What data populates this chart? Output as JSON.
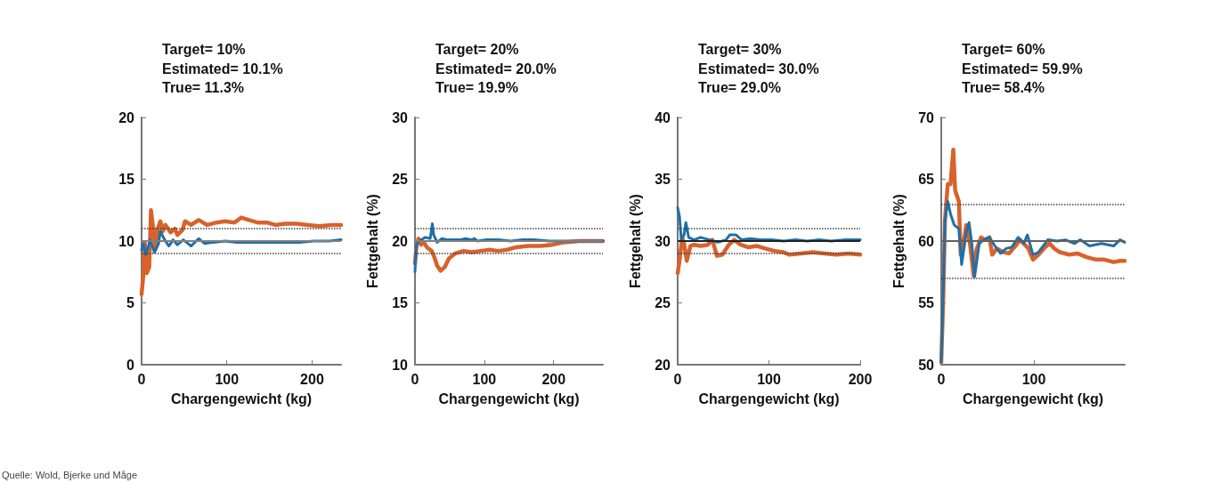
{
  "chart_data": [
    {
      "type": "line",
      "title": "Target= 10%",
      "subtitle": "Estimated= 10.1%\nTrue= 11.3%",
      "xlabel": "Chargengewicht (kg)",
      "xlim": [
        0,
        234
      ],
      "xticks": [
        0,
        100,
        200
      ],
      "ylim": [
        0,
        20
      ],
      "yticks": [
        0,
        5,
        10,
        15,
        20
      ],
      "series": [
        {
          "color": "#d9622b",
          "x": [
            0,
            2,
            4,
            6,
            9,
            11,
            14,
            16,
            19,
            22,
            25,
            28,
            34,
            39,
            42,
            48,
            51,
            58,
            67,
            77,
            88,
            98,
            109,
            117,
            126,
            136,
            147,
            157,
            168,
            182,
            195,
            209,
            223,
            234
          ],
          "values": [
            5.7,
            7.2,
            9.8,
            7.4,
            7.9,
            12.5,
            10.8,
            9.3,
            11,
            11.6,
            10.8,
            11.3,
            10.7,
            11,
            10.5,
            10.9,
            11.6,
            11.3,
            11.7,
            11.3,
            11.5,
            11.6,
            11.5,
            11.9,
            11.7,
            11.5,
            11.5,
            11.3,
            11.4,
            11.4,
            11.3,
            11.2,
            11.3,
            11.3
          ]
        },
        {
          "color": "#1f6fa8",
          "x": [
            0,
            2,
            5,
            8,
            10,
            15,
            20,
            22,
            27,
            32,
            37,
            42,
            49,
            58,
            67,
            74,
            84,
            98,
            112,
            126,
            140,
            154,
            168,
            185,
            202,
            220,
            234
          ],
          "values": [
            9.3,
            9.8,
            8.9,
            9.6,
            10.1,
            9.1,
            9.8,
            10.8,
            10.1,
            9.6,
            10.1,
            9.7,
            10.1,
            9.6,
            10.2,
            9.8,
            9.9,
            10.0,
            9.9,
            9.9,
            9.9,
            9.9,
            9.9,
            9.9,
            10.0,
            10.0,
            10.1
          ]
        }
      ],
      "ref_lines": [
        {
          "axis": "y",
          "value": 10,
          "color": "#808080",
          "line_style": "solid"
        },
        {
          "axis": "y",
          "value": 11,
          "color": "#404040",
          "line_style": "dotted"
        },
        {
          "axis": "y",
          "value": 9,
          "color": "#404040",
          "line_style": "dotted"
        }
      ],
      "annotations": [
        "Quelle: Wold, Bjerke und Måge"
      ]
    },
    {
      "type": "line",
      "title": "Target= 20%",
      "subtitle": "Estimated= 20.0%\nTrue= 19.9%",
      "xlabel": "Chargengewicht (kg)",
      "ylabel": "Fettgehalt (%)",
      "xlim": [
        0,
        271
      ],
      "xticks": [
        0,
        100,
        200
      ],
      "ylim": [
        10,
        30
      ],
      "yticks": [
        10,
        15,
        20,
        25,
        30
      ],
      "series": [
        {
          "color": "#d9622b",
          "x": [
            0,
            2,
            5,
            9,
            13,
            17,
            24,
            28,
            32,
            37,
            43,
            49,
            58,
            70,
            82,
            95,
            108,
            120,
            133,
            146,
            163,
            181,
            198,
            215,
            237,
            271
          ],
          "values": [
            18.2,
            19.5,
            20.2,
            19.7,
            19.9,
            19.5,
            19.2,
            18.7,
            18.0,
            17.6,
            17.9,
            18.6,
            19.0,
            19.2,
            19.1,
            19.2,
            19.3,
            19.2,
            19.3,
            19.5,
            19.6,
            19.6,
            19.7,
            19.9,
            20.0,
            20.0
          ]
        },
        {
          "color": "#1f6fa8",
          "x": [
            0,
            2,
            5,
            9,
            15,
            22,
            25,
            27,
            32,
            39,
            47,
            56,
            65,
            73,
            82,
            86,
            90,
            103,
            120,
            138,
            155,
            172,
            194,
            215,
            237,
            254,
            271
          ],
          "values": [
            17.5,
            19.7,
            19.9,
            20.1,
            20.3,
            20.2,
            21.4,
            20.5,
            19.9,
            20.2,
            20.1,
            20.1,
            20.1,
            20.2,
            20.1,
            20.2,
            20.0,
            20.1,
            20.1,
            20.0,
            20.1,
            20.1,
            20.0,
            20.0,
            20.0,
            20.0,
            20.0
          ]
        }
      ],
      "ref_lines": [
        {
          "axis": "y",
          "value": 20,
          "color": "#808080",
          "line_style": "solid"
        },
        {
          "axis": "y",
          "value": 21,
          "color": "#404040",
          "line_style": "dotted"
        },
        {
          "axis": "y",
          "value": 19,
          "color": "#404040",
          "line_style": "dotted"
        }
      ]
    },
    {
      "type": "line",
      "title": "Target= 30%",
      "subtitle": "Estimated= 30.0%\nTrue= 29.0%",
      "xlabel": "Chargengewicht (kg)",
      "ylabel": "Fettgehalt (%)",
      "xlim": [
        0,
        200
      ],
      "xticks": [
        0,
        100,
        200
      ],
      "ylim": [
        20,
        40
      ],
      "yticks": [
        20,
        25,
        30,
        35,
        40
      ],
      "series": [
        {
          "color": "#d9622b",
          "x": [
            0,
            2,
            5,
            7,
            10,
            14,
            18,
            25,
            33,
            38,
            43,
            49,
            56,
            62,
            69,
            77,
            87,
            96,
            106,
            116,
            122,
            135,
            148,
            161,
            174,
            187,
            200
          ],
          "values": [
            27.4,
            28.4,
            30.3,
            29.8,
            28.4,
            29.6,
            29.7,
            29.6,
            29.7,
            30.1,
            28.8,
            28.9,
            29.7,
            30.1,
            29.7,
            29.5,
            29.6,
            29.4,
            29.2,
            29.1,
            28.9,
            29.0,
            29.1,
            29.0,
            28.9,
            29.0,
            28.9
          ]
        },
        {
          "color": "#1f6fa8",
          "x": [
            0,
            2,
            4,
            7,
            9,
            12,
            18,
            25,
            35,
            44,
            53,
            57,
            64,
            70,
            80,
            90,
            103,
            116,
            129,
            142,
            155,
            168,
            184,
            200
          ],
          "values": [
            32.7,
            32.0,
            30.1,
            30.5,
            31.5,
            30.3,
            30.1,
            30.3,
            30.1,
            29.9,
            30.1,
            30.5,
            30.5,
            30.1,
            30.2,
            30.1,
            30.1,
            30.0,
            30.1,
            30.0,
            30.1,
            30.0,
            30.1,
            30.1
          ]
        }
      ],
      "ref_lines": [
        {
          "axis": "y",
          "value": 30,
          "color": "#202020",
          "line_style": "solid"
        },
        {
          "axis": "y",
          "value": 31,
          "color": "#404040",
          "line_style": "dotted"
        },
        {
          "axis": "y",
          "value": 29,
          "color": "#404040",
          "line_style": "dotted"
        }
      ]
    },
    {
      "type": "line",
      "title": "Target= 60%",
      "subtitle": "Estimated= 59.9%\nTrue= 58.4%",
      "xlabel": "Chargengewicht (kg)",
      "ylabel": "Fettgehalt (%)",
      "xlim": [
        0,
        198
      ],
      "xticks": [
        0,
        100
      ],
      "ylim": [
        50,
        70
      ],
      "yticks": [
        50,
        55,
        60,
        65,
        70
      ],
      "series": [
        {
          "color": "#d9622b",
          "x": [
            0,
            2,
            4,
            7,
            10,
            13,
            15,
            19,
            21,
            24,
            27,
            31,
            35,
            38,
            43,
            47,
            52,
            55,
            60,
            67,
            73,
            80,
            85,
            89,
            94,
            99,
            105,
            112,
            117,
            122,
            128,
            138,
            147,
            157,
            167,
            176,
            186,
            193,
            198
          ],
          "values": [
            50.2,
            55,
            61.7,
            64.6,
            64.6,
            67.4,
            64.1,
            63.2,
            58.9,
            59.8,
            61.3,
            59.8,
            57.2,
            59.3,
            60.3,
            60.1,
            60.3,
            58.9,
            59.4,
            59.1,
            59.0,
            59.6,
            60.1,
            59.8,
            59.4,
            58.5,
            58.9,
            59.5,
            59.8,
            59.4,
            59.1,
            58.9,
            59.0,
            58.7,
            58.5,
            58.5,
            58.3,
            58.4,
            58.4
          ]
        },
        {
          "color": "#1f6fa8",
          "x": [
            0,
            4,
            7,
            10,
            14,
            19,
            22,
            27,
            30,
            33,
            36,
            41,
            46,
            52,
            58,
            64,
            70,
            76,
            83,
            89,
            93,
            99,
            105,
            115,
            125,
            134,
            144,
            150,
            160,
            173,
            186,
            193,
            198
          ],
          "values": [
            50.2,
            61.7,
            63.2,
            62.2,
            61.3,
            61.0,
            58.1,
            60.7,
            61.5,
            59.8,
            57.1,
            59.8,
            60.1,
            60.3,
            59.6,
            59.0,
            59.4,
            59.5,
            60.3,
            59.8,
            60.5,
            58.9,
            59.1,
            60.1,
            60.0,
            60.1,
            59.8,
            60.1,
            59.6,
            59.8,
            59.6,
            60.1,
            59.9
          ]
        }
      ],
      "ref_lines": [
        {
          "axis": "y",
          "value": 60,
          "color": "#606060",
          "line_style": "solid"
        },
        {
          "axis": "y",
          "value": 63,
          "color": "#404040",
          "line_style": "dotted"
        },
        {
          "axis": "y",
          "value": 57,
          "color": "#404040",
          "line_style": "dotted"
        }
      ]
    }
  ]
}
